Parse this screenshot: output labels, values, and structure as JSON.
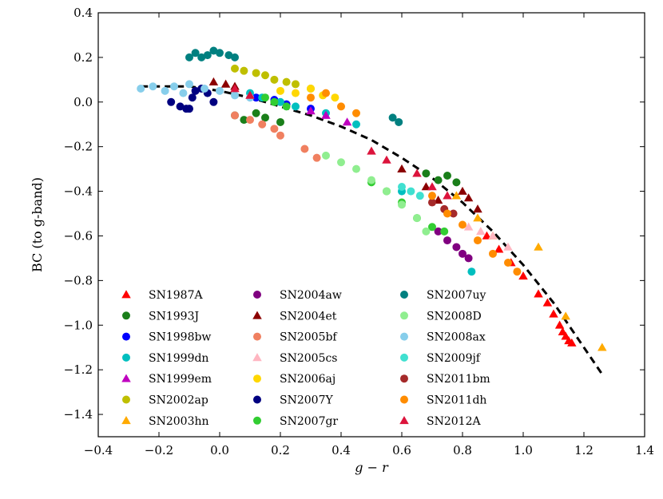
{
  "chart_data": {
    "type": "scatter",
    "xlabel": "g − r",
    "ylabel": "BC (to g-band)",
    "xlim": [
      -0.4,
      1.4
    ],
    "ylim": [
      -1.5,
      0.4
    ],
    "xticks": [
      "−0.4",
      "−0.2",
      "0.0",
      "0.2",
      "0.4",
      "0.6",
      "0.8",
      "1.0",
      "1.2",
      "1.4"
    ],
    "yticks": [
      "0.4",
      "0.2",
      "0.0",
      "−0.2",
      "−0.4",
      "−0.6",
      "−0.8",
      "−1.0",
      "−1.2",
      "−1.4"
    ],
    "xtick_values": [
      -0.4,
      -0.2,
      0.0,
      0.2,
      0.4,
      0.6,
      0.8,
      1.0,
      1.2,
      1.4
    ],
    "ytick_values": [
      0.4,
      0.2,
      0.0,
      -0.2,
      -0.4,
      -0.6,
      -0.8,
      -1.0,
      -1.2,
      -1.4
    ],
    "grid": false,
    "legend_position": "lower-left",
    "fit_line": {
      "style": "dashed",
      "color": "#000000",
      "x": [
        -0.26,
        -0.1,
        0.0,
        0.1,
        0.2,
        0.3,
        0.4,
        0.5,
        0.6,
        0.7,
        0.8,
        0.9,
        1.0,
        1.1,
        1.26
      ],
      "y": [
        0.07,
        0.07,
        0.05,
        0.02,
        -0.02,
        -0.06,
        -0.11,
        -0.17,
        -0.25,
        -0.34,
        -0.45,
        -0.58,
        -0.73,
        -0.9,
        -1.22
      ]
    },
    "series": [
      {
        "name": "SN1987A",
        "marker": "triangle",
        "color": "#ff0000",
        "x": [
          0.88,
          0.92,
          0.96,
          1.0,
          1.05,
          1.08,
          1.1,
          1.12,
          1.13,
          1.14,
          1.15,
          1.16
        ],
        "y": [
          -0.6,
          -0.66,
          -0.72,
          -0.78,
          -0.86,
          -0.9,
          -0.95,
          -1.0,
          -1.03,
          -1.05,
          -1.07,
          -1.08
        ]
      },
      {
        "name": "SN1993J",
        "marker": "circle",
        "color": "#1a7f1a",
        "x": [
          0.05,
          0.08,
          0.12,
          0.15,
          0.2,
          0.68,
          0.72,
          0.75,
          0.78
        ],
        "y": [
          -0.06,
          -0.08,
          -0.05,
          -0.07,
          -0.09,
          -0.32,
          -0.35,
          -0.33,
          -0.36
        ]
      },
      {
        "name": "SN1998bw",
        "marker": "circle",
        "color": "#0000ff",
        "x": [
          0.12,
          0.18,
          0.22,
          0.3
        ],
        "y": [
          0.02,
          0.01,
          -0.01,
          -0.03
        ]
      },
      {
        "name": "SN1999dn",
        "marker": "circle",
        "color": "#00bfbf",
        "x": [
          0.1,
          0.14,
          0.2,
          0.25,
          0.35,
          0.45,
          0.6,
          0.83
        ],
        "y": [
          0.04,
          0.02,
          0.0,
          -0.02,
          -0.05,
          -0.1,
          -0.4,
          -0.76
        ]
      },
      {
        "name": "SN1999em",
        "marker": "triangle",
        "color": "#bf00bf",
        "x": [
          0.3,
          0.35,
          0.42
        ],
        "y": [
          -0.04,
          -0.06,
          -0.09
        ]
      },
      {
        "name": "SN2002ap",
        "marker": "circle",
        "color": "#bfbf00",
        "x": [
          0.05,
          0.08,
          0.12,
          0.15,
          0.18,
          0.22,
          0.25,
          0.3
        ],
        "y": [
          0.15,
          0.14,
          0.13,
          0.12,
          0.1,
          0.09,
          0.08,
          0.06
        ]
      },
      {
        "name": "SN2003hn",
        "marker": "triangle",
        "color": "#ffaa00",
        "x": [
          0.78,
          0.85,
          0.9,
          1.05,
          1.14,
          1.26
        ],
        "y": [
          -0.42,
          -0.52,
          -0.6,
          -0.65,
          -0.96,
          -1.1
        ]
      },
      {
        "name": "SN2004aw",
        "marker": "circle",
        "color": "#800080",
        "x": [
          0.72,
          0.75,
          0.78,
          0.8,
          0.82
        ],
        "y": [
          -0.58,
          -0.62,
          -0.65,
          -0.68,
          -0.7
        ]
      },
      {
        "name": "SN2004et",
        "marker": "triangle",
        "color": "#8b0000",
        "x": [
          -0.02,
          0.02,
          0.05,
          0.6,
          0.68,
          0.72,
          0.8,
          0.82,
          0.85
        ],
        "y": [
          0.09,
          0.08,
          0.07,
          -0.3,
          -0.38,
          -0.44,
          -0.4,
          -0.43,
          -0.48
        ]
      },
      {
        "name": "SN2005bf",
        "marker": "circle",
        "color": "#f08060",
        "x": [
          0.05,
          0.1,
          0.14,
          0.18,
          0.2,
          0.28,
          0.32
        ],
        "y": [
          -0.06,
          -0.08,
          -0.1,
          -0.12,
          -0.15,
          -0.21,
          -0.25
        ]
      },
      {
        "name": "SN2005cs",
        "marker": "triangle",
        "color": "#ffb6c1",
        "x": [
          0.82,
          0.86,
          0.9,
          0.95
        ],
        "y": [
          -0.56,
          -0.58,
          -0.6,
          -0.65
        ]
      },
      {
        "name": "SN2006aj",
        "marker": "circle",
        "color": "#ffd700",
        "x": [
          0.2,
          0.25,
          0.3,
          0.34,
          0.38
        ],
        "y": [
          0.05,
          0.04,
          0.06,
          0.03,
          0.02
        ]
      },
      {
        "name": "SN2007Y",
        "marker": "circle",
        "color": "#000080",
        "x": [
          -0.16,
          -0.13,
          -0.11,
          -0.1,
          -0.09,
          -0.08,
          -0.06,
          -0.04,
          -0.02
        ],
        "y": [
          0.0,
          -0.02,
          -0.03,
          -0.03,
          0.02,
          0.05,
          0.06,
          0.04,
          0.0
        ]
      },
      {
        "name": "SN2007gr",
        "marker": "circle",
        "color": "#32cd32",
        "x": [
          0.15,
          0.18,
          0.22,
          0.5,
          0.55,
          0.6,
          0.65,
          0.7,
          0.74
        ],
        "y": [
          0.02,
          0.0,
          -0.02,
          -0.36,
          -0.4,
          -0.45,
          -0.52,
          -0.56,
          -0.58
        ]
      },
      {
        "name": "SN2007uy",
        "marker": "circle",
        "color": "#008080",
        "x": [
          -0.1,
          -0.08,
          -0.06,
          -0.04,
          -0.02,
          0.0,
          0.03,
          0.05,
          0.57,
          0.59
        ],
        "y": [
          0.2,
          0.22,
          0.2,
          0.21,
          0.23,
          0.22,
          0.21,
          0.2,
          -0.07,
          -0.09
        ]
      },
      {
        "name": "SN2008D",
        "marker": "circle",
        "color": "#90ee90",
        "x": [
          0.35,
          0.4,
          0.45,
          0.5,
          0.55,
          0.6,
          0.65,
          0.68
        ],
        "y": [
          -0.24,
          -0.27,
          -0.3,
          -0.35,
          -0.4,
          -0.46,
          -0.52,
          -0.58
        ]
      },
      {
        "name": "SN2008ax",
        "marker": "circle",
        "color": "#87ceeb",
        "x": [
          -0.26,
          -0.22,
          -0.18,
          -0.15,
          -0.12,
          -0.1,
          -0.05,
          0.0,
          0.05,
          0.1
        ],
        "y": [
          0.06,
          0.07,
          0.05,
          0.07,
          0.04,
          0.08,
          0.06,
          0.05,
          0.03,
          0.02
        ]
      },
      {
        "name": "SN2009jf",
        "marker": "circle",
        "color": "#40e0d0",
        "x": [
          0.6,
          0.63,
          0.66
        ],
        "y": [
          -0.38,
          -0.4,
          -0.42
        ]
      },
      {
        "name": "SN2011bm",
        "marker": "circle",
        "color": "#a52a2a",
        "x": [
          0.7,
          0.74,
          0.77
        ],
        "y": [
          -0.45,
          -0.48,
          -0.5
        ]
      },
      {
        "name": "SN2011dh",
        "marker": "circle",
        "color": "#ff8c00",
        "x": [
          0.3,
          0.35,
          0.4,
          0.45,
          0.7,
          0.75,
          0.8,
          0.85,
          0.9,
          0.95,
          0.98
        ],
        "y": [
          0.02,
          0.04,
          -0.02,
          -0.05,
          -0.42,
          -0.5,
          -0.55,
          -0.62,
          -0.68,
          -0.72,
          -0.76
        ]
      },
      {
        "name": "SN2012A",
        "marker": "triangle",
        "color": "#dc143c",
        "x": [
          0.05,
          0.1,
          0.5,
          0.55,
          0.65,
          0.7,
          0.75
        ],
        "y": [
          0.06,
          0.03,
          -0.22,
          -0.26,
          -0.32,
          -0.38,
          -0.42
        ]
      }
    ]
  }
}
